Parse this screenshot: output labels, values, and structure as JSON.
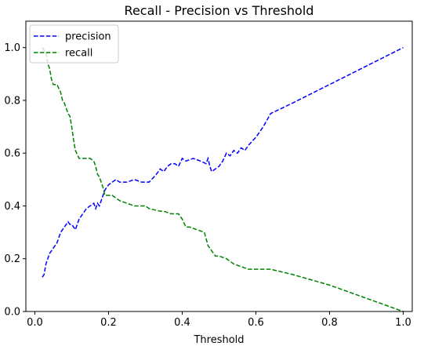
{
  "chart_data": {
    "type": "line",
    "title": "Recall - Precision vs Threshold",
    "xlabel": "Threshold",
    "ylabel": "",
    "xlim": [
      -0.0245,
      1.0245
    ],
    "ylim": [
      0.0,
      1.1
    ],
    "xticks": [
      0.0,
      0.2,
      0.4,
      0.6,
      0.8,
      1.0
    ],
    "xtick_labels": [
      "0.0",
      "0.2",
      "0.4",
      "0.6",
      "0.8",
      "1.0"
    ],
    "yticks": [
      0.0,
      0.2,
      0.4,
      0.6,
      0.8,
      1.0
    ],
    "ytick_labels": [
      "0.0",
      "0.2",
      "0.4",
      "0.6",
      "0.8",
      "1.0"
    ],
    "grid": false,
    "legend": "upper-left",
    "series": [
      {
        "name": "precision",
        "color": "#0000ff",
        "style": "dashed",
        "x": [
          0.02,
          0.025,
          0.03,
          0.035,
          0.04,
          0.045,
          0.05,
          0.06,
          0.07,
          0.08,
          0.085,
          0.09,
          0.095,
          0.1,
          0.105,
          0.11,
          0.115,
          0.12,
          0.13,
          0.14,
          0.15,
          0.16,
          0.165,
          0.17,
          0.175,
          0.18,
          0.19,
          0.2,
          0.21,
          0.22,
          0.23,
          0.25,
          0.27,
          0.29,
          0.31,
          0.33,
          0.34,
          0.35,
          0.36,
          0.37,
          0.38,
          0.39,
          0.4,
          0.41,
          0.43,
          0.45,
          0.465,
          0.47,
          0.475,
          0.48,
          0.49,
          0.5,
          0.51,
          0.52,
          0.53,
          0.54,
          0.55,
          0.56,
          0.57,
          0.58,
          0.6,
          0.62,
          0.64,
          0.7,
          0.8,
          0.9,
          1.0
        ],
        "y": [
          0.13,
          0.14,
          0.18,
          0.2,
          0.22,
          0.23,
          0.24,
          0.26,
          0.3,
          0.32,
          0.33,
          0.34,
          0.33,
          0.33,
          0.32,
          0.31,
          0.33,
          0.35,
          0.37,
          0.39,
          0.4,
          0.41,
          0.39,
          0.41,
          0.4,
          0.42,
          0.46,
          0.48,
          0.49,
          0.5,
          0.49,
          0.49,
          0.5,
          0.49,
          0.49,
          0.52,
          0.54,
          0.53,
          0.55,
          0.56,
          0.56,
          0.55,
          0.58,
          0.57,
          0.58,
          0.57,
          0.56,
          0.58,
          0.55,
          0.53,
          0.54,
          0.55,
          0.57,
          0.6,
          0.59,
          0.61,
          0.6,
          0.62,
          0.61,
          0.63,
          0.66,
          0.7,
          0.75,
          0.79,
          0.86,
          0.93,
          1.0
        ]
      },
      {
        "name": "recall",
        "color": "#008000",
        "style": "dashed",
        "x": [
          0.02,
          0.03,
          0.035,
          0.04,
          0.045,
          0.05,
          0.06,
          0.07,
          0.075,
          0.08,
          0.085,
          0.09,
          0.095,
          0.1,
          0.105,
          0.11,
          0.12,
          0.13,
          0.14,
          0.15,
          0.16,
          0.165,
          0.17,
          0.175,
          0.18,
          0.185,
          0.19,
          0.21,
          0.22,
          0.23,
          0.25,
          0.27,
          0.3,
          0.31,
          0.34,
          0.35,
          0.37,
          0.39,
          0.4,
          0.41,
          0.42,
          0.44,
          0.46,
          0.47,
          0.48,
          0.49,
          0.5,
          0.52,
          0.54,
          0.56,
          0.58,
          0.64,
          0.7,
          0.8,
          0.9,
          1.0
        ],
        "y": [
          1.0,
          0.98,
          0.94,
          0.92,
          0.88,
          0.86,
          0.86,
          0.83,
          0.8,
          0.79,
          0.77,
          0.75,
          0.74,
          0.7,
          0.65,
          0.61,
          0.58,
          0.58,
          0.58,
          0.58,
          0.57,
          0.55,
          0.52,
          0.51,
          0.49,
          0.47,
          0.44,
          0.44,
          0.43,
          0.42,
          0.41,
          0.4,
          0.4,
          0.39,
          0.38,
          0.38,
          0.37,
          0.37,
          0.35,
          0.32,
          0.32,
          0.31,
          0.3,
          0.25,
          0.23,
          0.21,
          0.21,
          0.2,
          0.18,
          0.17,
          0.16,
          0.16,
          0.14,
          0.1,
          0.05,
          0.0
        ]
      }
    ]
  }
}
